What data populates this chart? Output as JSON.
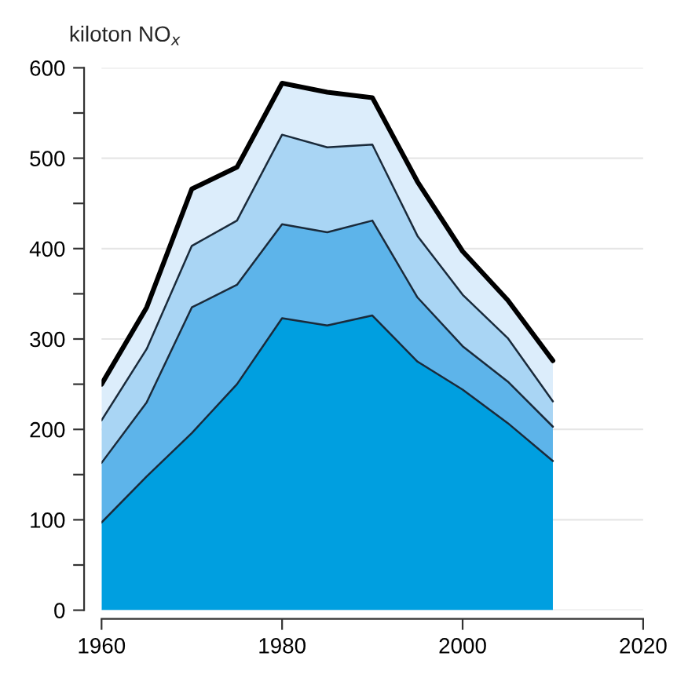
{
  "chart_data": {
    "type": "area",
    "stacked": true,
    "ylabel": "kiloton NO$_{x}$",
    "x": [
      1960,
      1965,
      1970,
      1975,
      1980,
      1985,
      1990,
      1995,
      2000,
      2005,
      2010
    ],
    "series": [
      {
        "color": "#009fe0",
        "values": [
          97,
          148,
          196,
          250,
          323,
          315,
          326,
          275,
          244,
          207,
          165
        ]
      },
      {
        "color": "#5db4ea",
        "values": [
          66,
          82,
          139,
          110,
          104,
          103,
          105,
          71,
          48,
          46,
          38
        ]
      },
      {
        "color": "#a9d5f4",
        "values": [
          47,
          59,
          68,
          71,
          99,
          94,
          84,
          68,
          57,
          48,
          28
        ]
      },
      {
        "color": "#dcedfb",
        "values": [
          40,
          46,
          63,
          59,
          57,
          61,
          52,
          60,
          48,
          42,
          45
        ]
      }
    ],
    "xlim": [
      1960,
      2020
    ],
    "xticks": [
      1960,
      1980,
      2000,
      2020
    ],
    "ylim": [
      0,
      600
    ],
    "yticks": [
      0,
      {
        "value": 50,
        "label": null
      },
      100,
      {
        "value": 150,
        "label": null
      },
      200,
      {
        "value": 250,
        "label": null
      },
      300,
      {
        "value": 350,
        "label": null
      },
      400,
      {
        "value": 450,
        "label": null
      },
      500,
      {
        "value": 550,
        "label": null
      },
      600
    ],
    "grid": "y",
    "legend": false
  }
}
